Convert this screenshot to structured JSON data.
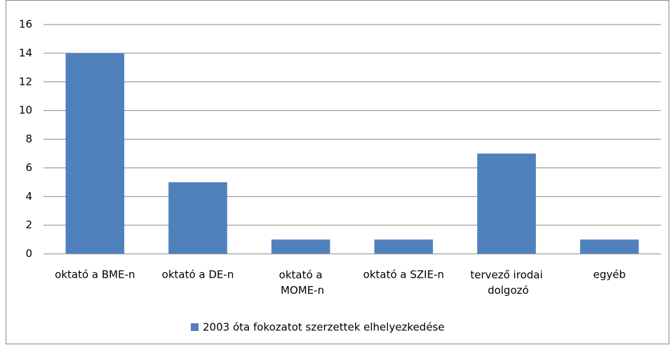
{
  "chart_data": {
    "type": "bar",
    "categories": [
      "oktató a BME-n",
      "oktató a DE-n",
      "oktató a MOME-n",
      "oktató a SZIE-n",
      "tervező irodai dolgozó",
      "egyéb"
    ],
    "series": [
      {
        "name": "2003 óta fokozatot szerzettek elhelyezkedése",
        "color": "#4f81bd",
        "values": [
          14,
          5,
          1,
          1,
          7,
          1
        ]
      }
    ],
    "ylim": [
      0,
      16
    ],
    "yticks": [
      0,
      2,
      4,
      6,
      8,
      10,
      12,
      14,
      16
    ],
    "grid": true,
    "legend": "bottom"
  }
}
